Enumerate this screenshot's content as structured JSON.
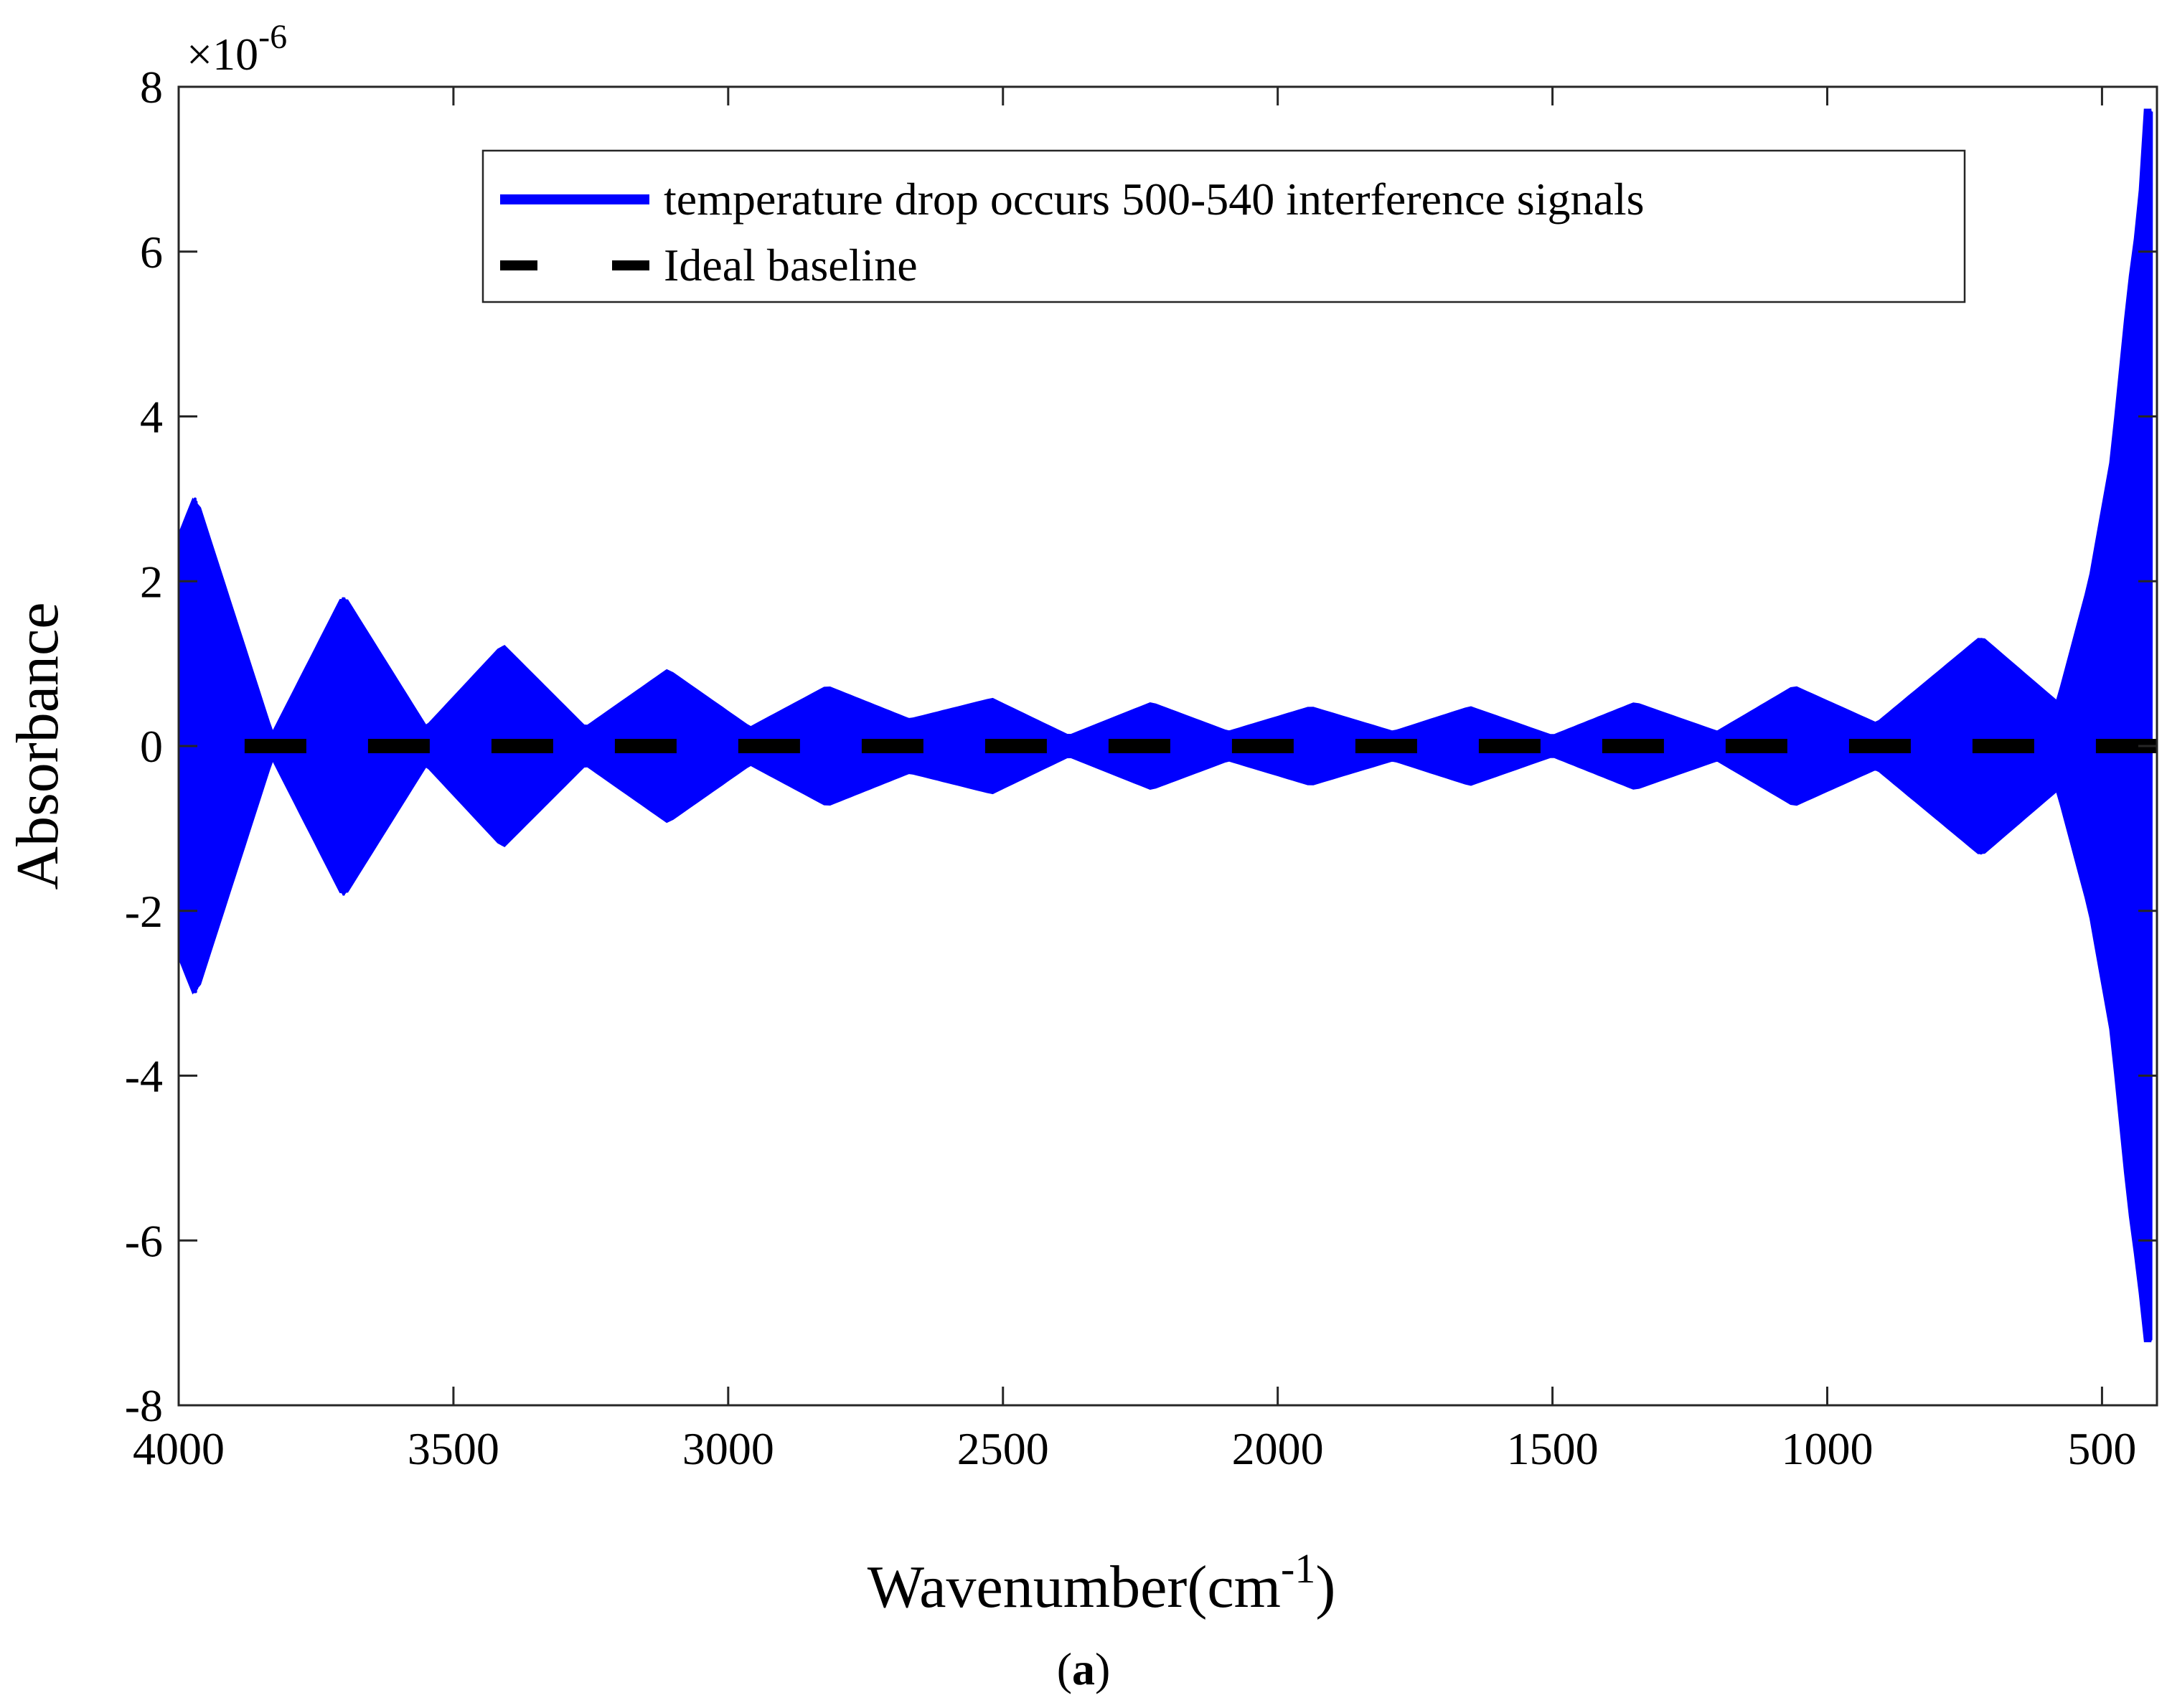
{
  "chart_data": {
    "type": "line",
    "title": "",
    "xlabel": "Wavenumber(cm",
    "xlabel_superscript": "-1",
    "xlabel_close": ")",
    "ylabel": "Absorbance",
    "y_exponent_prefix": "×10",
    "y_exponent_power": "-6",
    "panel_label_open": "(",
    "panel_label_letter": "a",
    "panel_label_close": ")",
    "xlim": [
      4000,
      400
    ],
    "x_reversed": true,
    "ylim": [
      -8,
      8
    ],
    "y_scale": 1e-06,
    "x_ticks": [
      4000,
      3500,
      3000,
      2500,
      2000,
      1500,
      1000,
      500
    ],
    "x_tick_labels": [
      "4000",
      "3500",
      "3000",
      "2500",
      "2000",
      "1500",
      "1000",
      "500"
    ],
    "y_ticks": [
      8,
      6,
      4,
      2,
      0,
      -2,
      -4,
      -6,
      -8
    ],
    "y_tick_labels": [
      "8",
      "6",
      "4",
      "2",
      "0",
      "-2",
      "-4",
      "-6",
      "-8"
    ],
    "grid": false,
    "legend_position": "top-center",
    "series": [
      {
        "name": "temperature drop occurs 500-540 interference signals",
        "color": "#0000ff",
        "style": "solid",
        "kind": "oscillating-envelope",
        "envelope": {
          "x": [
            4000,
            3970,
            3830,
            3700,
            3550,
            3410,
            3260,
            3110,
            2960,
            2820,
            2670,
            2520,
            2380,
            2230,
            2090,
            1940,
            1790,
            1650,
            1500,
            1350,
            1200,
            1060,
            910,
            720,
            580,
            520,
            480,
            450,
            430,
            420,
            410
          ],
          "upper": [
            2.5,
            3.0,
            0.1,
            1.8,
            0.2,
            1.2,
            0.2,
            0.9,
            0.2,
            0.7,
            0.3,
            0.55,
            0.1,
            0.5,
            0.15,
            0.45,
            0.15,
            0.45,
            0.1,
            0.5,
            0.15,
            0.7,
            0.25,
            1.3,
            0.5,
            2.0,
            3.5,
            5.5,
            6.5,
            7.7,
            7.7
          ],
          "lower": [
            -2.5,
            -3.0,
            -0.1,
            -1.8,
            -0.2,
            -1.2,
            -0.2,
            -0.9,
            -0.2,
            -0.7,
            -0.3,
            -0.55,
            -0.1,
            -0.5,
            -0.15,
            -0.45,
            -0.15,
            -0.45,
            -0.1,
            -0.5,
            -0.15,
            -0.7,
            -0.25,
            -1.3,
            -0.5,
            -2.0,
            -3.5,
            -5.5,
            -6.5,
            -7.2,
            -7.2
          ]
        }
      },
      {
        "name": "Ideal baseline",
        "color": "#000000",
        "style": "dashed",
        "x": [
          3880,
          400
        ],
        "y": [
          0,
          0
        ]
      }
    ]
  }
}
